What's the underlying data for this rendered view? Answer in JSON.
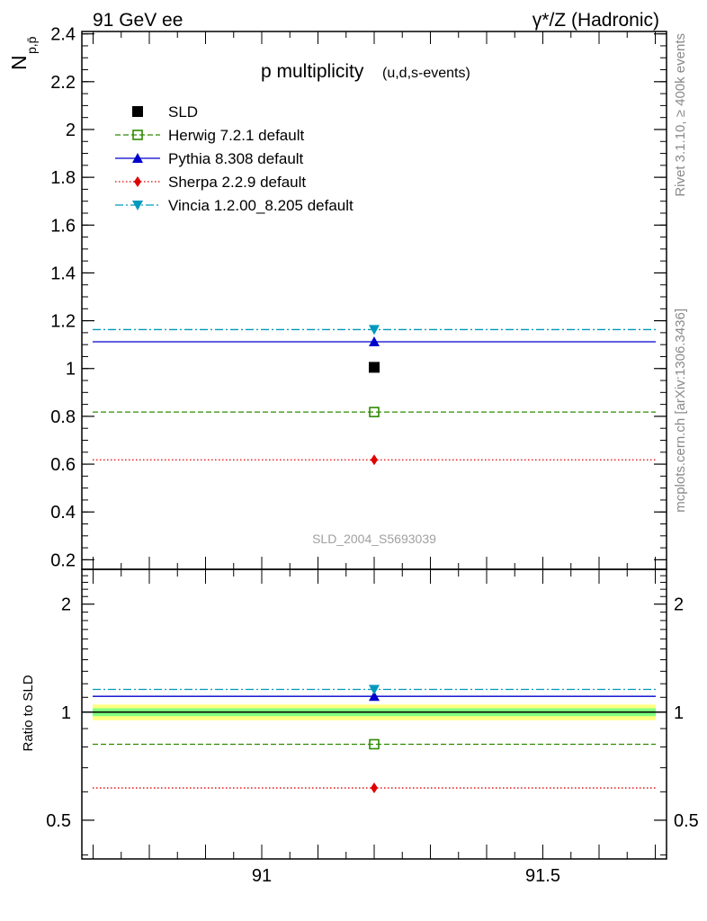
{
  "header": {
    "left": "91 GeV ee",
    "right": "γ*/Z (Hadronic)"
  },
  "side_labels": {
    "rivet": "Rivet 3.1.10, ≥ 400k events",
    "mcplots": "mcplots.cern.ch [arXiv:1306.3436]"
  },
  "colors": {
    "sld": "#000000",
    "herwig": "#2e8b00",
    "pythia": "#0000cc",
    "sherpa": "#e00000",
    "vincia": "#0099bb",
    "band_inner": "#7fff7f",
    "band_outer": "#ffff80"
  },
  "chart_data": [
    {
      "type": "scatter",
      "title": "p multiplicity",
      "title_suffix": "(u,d,s-events)",
      "ylabel": "N",
      "ylabel_sub": "p,p̄",
      "watermark": "SLD_2004_S5693039",
      "xlim": [
        90.68,
        91.72
      ],
      "ylim": [
        0.16,
        2.41
      ],
      "yticks": [
        "0.2",
        "0.4",
        "0.6",
        "0.8",
        "1",
        "1.2",
        "1.4",
        "1.6",
        "1.8",
        "2",
        "2.2",
        "2.4"
      ],
      "ytick_values": [
        0.2,
        0.4,
        0.6,
        0.8,
        1.0,
        1.2,
        1.4,
        1.6,
        1.8,
        2.0,
        2.2,
        2.4
      ],
      "legend_position": "top-left",
      "series": [
        {
          "name": "SLD",
          "x": [
            91.2
          ],
          "y": [
            1.005
          ],
          "marker": "filled-square",
          "line": "none",
          "color_key": "sld"
        },
        {
          "name": "Herwig 7.2.1 default",
          "x": [
            91.2
          ],
          "y": [
            0.818
          ],
          "marker": "open-square",
          "line": "dashed",
          "color_key": "herwig"
        },
        {
          "name": "Pythia 8.308 default",
          "x": [
            91.2
          ],
          "y": [
            1.112
          ],
          "marker": "triangle-up",
          "line": "solid",
          "color_key": "pythia"
        },
        {
          "name": "Sherpa 2.2.9 default",
          "x": [
            91.2
          ],
          "y": [
            0.618
          ],
          "marker": "diamond",
          "line": "dotted",
          "color_key": "sherpa"
        },
        {
          "name": "Vincia 1.2.00_8.205 default",
          "x": [
            91.2
          ],
          "y": [
            1.163
          ],
          "marker": "triangle-down",
          "line": "dashdot",
          "color_key": "vincia"
        }
      ]
    },
    {
      "type": "scatter",
      "ylabel": "Ratio to SLD",
      "xlabel": "",
      "yscale": "log",
      "xlim": [
        90.68,
        91.72
      ],
      "ylim": [
        0.39,
        2.5
      ],
      "yticks": [
        "0.5",
        "1",
        "2"
      ],
      "ytick_values": [
        0.5,
        1,
        2
      ],
      "xticks": [
        "91",
        "91.5"
      ],
      "xtick_values": [
        91,
        91.5
      ],
      "band": {
        "inner": [
          0.975,
          1.025
        ],
        "outer": [
          0.95,
          1.05
        ]
      },
      "series": [
        {
          "name": "Herwig 7.2.1 default",
          "x": [
            91.2
          ],
          "y": [
            0.814
          ],
          "marker": "open-square",
          "line": "dashed",
          "color_key": "herwig"
        },
        {
          "name": "Pythia 8.308 default",
          "x": [
            91.2
          ],
          "y": [
            1.107
          ],
          "marker": "triangle-up",
          "line": "solid",
          "color_key": "pythia"
        },
        {
          "name": "Sherpa 2.2.9 default",
          "x": [
            91.2
          ],
          "y": [
            0.615
          ],
          "marker": "diamond",
          "line": "dotted",
          "color_key": "sherpa"
        },
        {
          "name": "Vincia 1.2.00_8.205 default",
          "x": [
            91.2
          ],
          "y": [
            1.157
          ],
          "marker": "triangle-down",
          "line": "dashdot",
          "color_key": "vincia"
        }
      ]
    }
  ]
}
